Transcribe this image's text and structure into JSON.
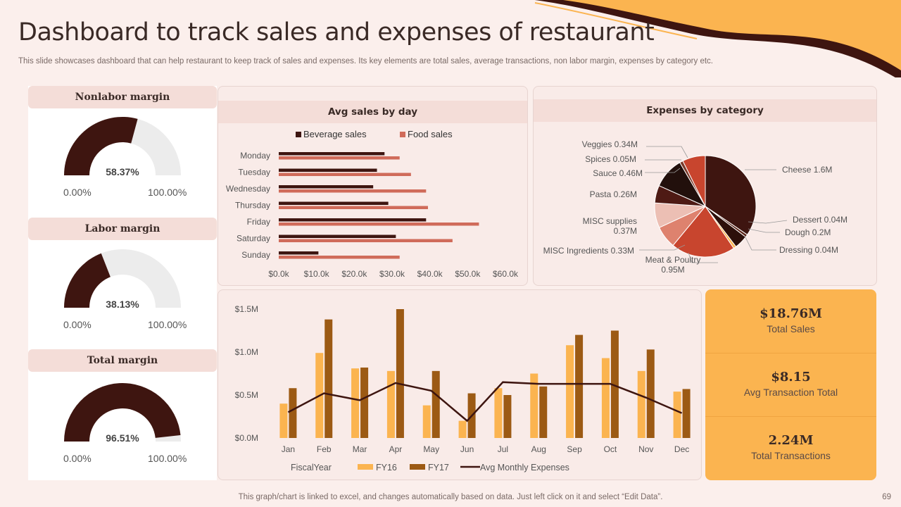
{
  "header": {
    "title": "Dashboard to track sales and expenses of restaurant",
    "subtitle": "This slide showcases dashboard that can help restaurant to keep track of sales and expenses. Its key elements are total sales, average transactions, non labor margin, expenses by category etc."
  },
  "footer": {
    "note": "This graph/chart is linked to excel, and changes automatically based on data. Just left click on it and select “Edit Data”.",
    "page": "69"
  },
  "colors": {
    "dark": "#3e1510",
    "light": "#ececec",
    "accent": "#fbb450",
    "brown": "#9c5a14",
    "salmon": "#d06b5a"
  },
  "gauges": [
    {
      "title": "Nonlabor margin",
      "value": 58.37,
      "label": "58.37%",
      "min": "0.00%",
      "max": "100.00%"
    },
    {
      "title": "Labor margin",
      "value": 38.13,
      "label": "38.13%",
      "min": "0.00%",
      "max": "100.00%"
    },
    {
      "title": "Total margin",
      "value": 96.51,
      "label": "96.51%",
      "min": "0.00%",
      "max": "100.00%"
    }
  ],
  "kpis": [
    {
      "value": "$18.76M",
      "label": "Total Sales"
    },
    {
      "value": "$8.15",
      "label": "Avg Transaction Total"
    },
    {
      "value": "2.24M",
      "label": "Total Transactions"
    }
  ],
  "chart_data": [
    {
      "type": "bar",
      "orientation": "horizontal",
      "title": "Avg sales by day",
      "categories": [
        "Monday",
        "Tuesday",
        "Wednesday",
        "Thursday",
        "Friday",
        "Saturday",
        "Sunday"
      ],
      "series": [
        {
          "name": "Beverage sales",
          "color": "#3e1510",
          "values": [
            28,
            26,
            25,
            29,
            39,
            31,
            10.5
          ]
        },
        {
          "name": "Food sales",
          "color": "#d06b5a",
          "values": [
            32,
            35,
            39,
            39.5,
            53,
            46,
            32
          ]
        }
      ],
      "xlim": [
        0,
        60
      ],
      "xticks": [
        "$0.0k",
        "$10.0k",
        "$20.0k",
        "$30.0k",
        "$40.0k",
        "$50.0k",
        "$60.0k"
      ]
    },
    {
      "type": "pie",
      "title": "Expenses by category",
      "slices": [
        {
          "label": "Cheese",
          "value": 1.6,
          "display": "Cheese 1.6M",
          "color": "#3e1510"
        },
        {
          "label": "Dessert",
          "value": 0.04,
          "display": "Dessert 0.04M",
          "color": "#5a2418"
        },
        {
          "label": "Dough",
          "value": 0.2,
          "display": "Dough 0.2M",
          "color": "#2c0f0a"
        },
        {
          "label": "Dressing",
          "value": 0.04,
          "display": "Dressing  0.04M",
          "color": "#fbb450"
        },
        {
          "label": "Meat & Poultry",
          "value": 0.95,
          "display": "Meat & Poultry 0.95M",
          "color": "#c8452e"
        },
        {
          "label": "MISC Ingredients",
          "value": 0.33,
          "display": "MISC Ingredients 0.33M",
          "color": "#de826e"
        },
        {
          "label": "MISC supplies",
          "value": 0.37,
          "display": "MISC supplies 0.37M",
          "color": "#ecbfb4"
        },
        {
          "label": "Pasta",
          "value": 0.26,
          "display": "Pasta 0.26M",
          "color": "#4e1a14"
        },
        {
          "label": "Sauce",
          "value": 0.46,
          "display": "Sauce 0.46M",
          "color": "#22100c"
        },
        {
          "label": "Spices",
          "value": 0.05,
          "display": "Spices 0.05M",
          "color": "#7a3a2a"
        },
        {
          "label": "Veggies",
          "value": 0.34,
          "display": "Veggies 0.34M",
          "color": "#c8452e"
        }
      ]
    },
    {
      "type": "bar+line",
      "title": "",
      "categories": [
        "Jan",
        "Feb",
        "Mar",
        "Apr",
        "May",
        "Jun",
        "Jul",
        "Aug",
        "Sep",
        "Oct",
        "Nov",
        "Dec"
      ],
      "series": [
        {
          "name": "FY16",
          "type": "bar",
          "color": "#fbb450",
          "values": [
            0.4,
            0.99,
            0.81,
            0.78,
            0.38,
            0.2,
            0.58,
            0.75,
            1.08,
            0.93,
            0.78,
            0.54
          ]
        },
        {
          "name": "FY17",
          "type": "bar",
          "color": "#9c5a14",
          "values": [
            0.58,
            1.38,
            0.82,
            1.5,
            0.78,
            0.52,
            0.5,
            0.6,
            1.2,
            1.25,
            1.03,
            0.57
          ]
        },
        {
          "name": "Avg Monthly Expenses",
          "type": "line",
          "color": "#3e1510",
          "values": [
            0.3,
            0.52,
            0.44,
            0.64,
            0.55,
            0.2,
            0.65,
            0.63,
            0.63,
            0.63,
            0.47,
            0.29
          ]
        }
      ],
      "ylim": [
        0,
        1.5
      ],
      "yticks": [
        "$0.0M",
        "$0.5M",
        "$1.0M",
        "$1.5M"
      ],
      "legend_title": "FiscalYear"
    }
  ]
}
